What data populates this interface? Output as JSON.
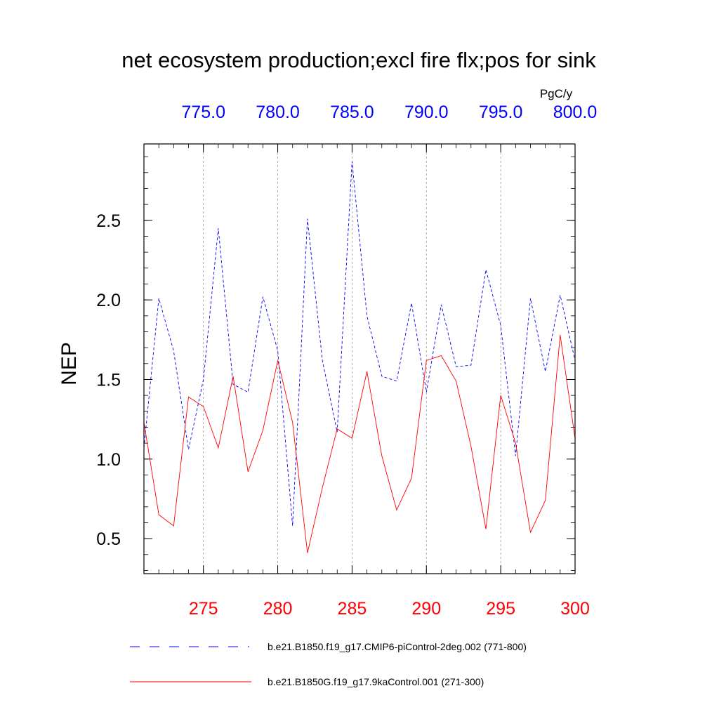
{
  "chart_data": {
    "type": "line",
    "title": "net ecosystem production;excl fire flx;pos for sink",
    "ylabel": "NEP",
    "units": "PgC/y",
    "ylim": [
      0.28,
      2.98
    ],
    "y_ticks": [
      0.5,
      1.0,
      1.5,
      2.0,
      2.5
    ],
    "y_tick_labels": [
      "0.5",
      "1.0",
      "1.5",
      "2.0",
      "2.5"
    ],
    "bottom_axis": {
      "range": [
        271,
        300
      ],
      "ticks": [
        275,
        280,
        285,
        290,
        295,
        300
      ],
      "tick_labels": [
        "275",
        "280",
        "285",
        "290",
        "295",
        "300"
      ],
      "color": "#ff0000"
    },
    "top_axis": {
      "range": [
        771,
        800
      ],
      "ticks": [
        775,
        780,
        785,
        790,
        795,
        800
      ],
      "tick_labels": [
        "775.0",
        "780.0",
        "785.0",
        "790.0",
        "795.0",
        "800.0"
      ],
      "color": "#0000ff"
    },
    "series": [
      {
        "name": "b.e21.B1850.f19_g17.CMIP6-piControl-2deg.002 (771-800)",
        "axis": "top",
        "color": "#0000ff",
        "style": "dashed",
        "x": [
          771,
          772,
          773,
          774,
          775,
          776,
          777,
          778,
          779,
          780,
          781,
          782,
          783,
          784,
          785,
          786,
          787,
          788,
          789,
          790,
          791,
          792,
          793,
          794,
          795,
          796,
          797,
          798,
          799,
          800
        ],
        "values": [
          1.07,
          2.01,
          1.68,
          1.06,
          1.5,
          2.45,
          1.47,
          1.42,
          2.02,
          1.68,
          0.58,
          2.51,
          1.62,
          1.17,
          2.87,
          1.9,
          1.52,
          1.49,
          1.98,
          1.42,
          1.97,
          1.58,
          1.59,
          2.19,
          1.84,
          1.02,
          2.01,
          1.55,
          2.03,
          1.62
        ]
      },
      {
        "name": "b.e21.B1850G.f19_g17.9kaControl.001 (271-300)",
        "axis": "bottom",
        "color": "#ff0000",
        "style": "solid",
        "x": [
          271,
          272,
          273,
          274,
          275,
          276,
          277,
          278,
          279,
          280,
          281,
          282,
          283,
          284,
          285,
          286,
          287,
          288,
          289,
          290,
          291,
          292,
          293,
          294,
          295,
          296,
          297,
          298,
          299,
          300
        ],
        "values": [
          1.23,
          0.65,
          0.58,
          1.39,
          1.33,
          1.07,
          1.52,
          0.92,
          1.18,
          1.62,
          1.23,
          0.41,
          0.82,
          1.19,
          1.13,
          1.55,
          1.02,
          0.68,
          0.88,
          1.62,
          1.65,
          1.49,
          1.08,
          0.56,
          1.4,
          1.1,
          0.54,
          0.74,
          1.78,
          1.13
        ]
      }
    ]
  }
}
